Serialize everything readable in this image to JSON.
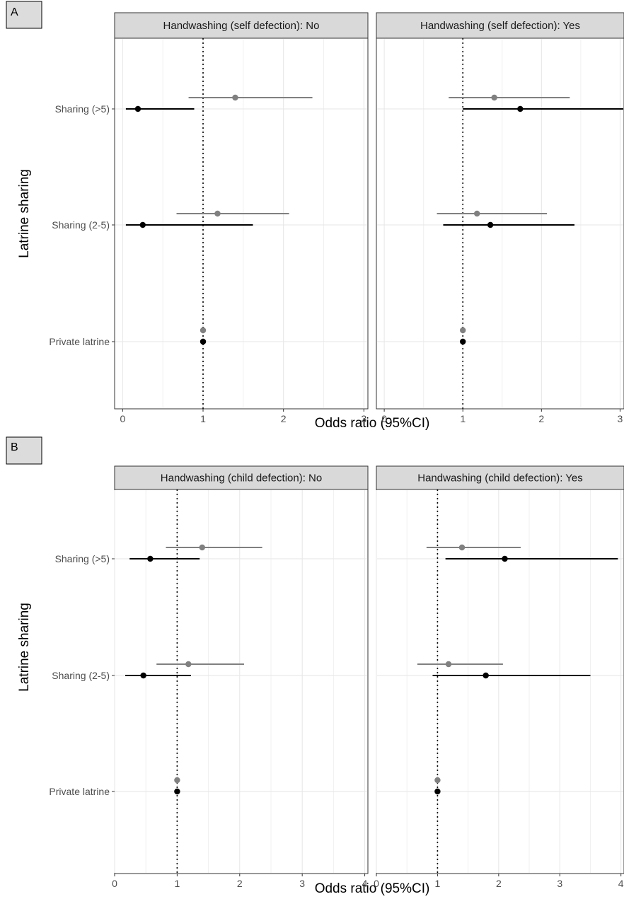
{
  "chart_data": [
    {
      "type": "scatter",
      "panel_tag": "A",
      "ylabel": "Latrine sharing",
      "xlabel": "Odds ratio (95%CI)",
      "categories": [
        "Sharing (>5)",
        "Sharing (2-5)",
        "Private latrine"
      ],
      "xlim": [
        -0.1,
        3.05
      ],
      "xticks": [
        0,
        1,
        2,
        3
      ],
      "reference_line": 1,
      "grid": true,
      "colors": {
        "grey_series": "#808080",
        "black_series": "#000000"
      },
      "facets": [
        {
          "strip": "Handwashing (self defection): No",
          "series": [
            {
              "color": "grey",
              "points": [
                {
                  "category": "Sharing (>5)",
                  "or": 1.4,
                  "lo": 0.82,
                  "hi": 2.36
                },
                {
                  "category": "Sharing (2-5)",
                  "or": 1.18,
                  "lo": 0.67,
                  "hi": 2.07
                },
                {
                  "category": "Private latrine",
                  "or": 1.0,
                  "lo": 1.0,
                  "hi": 1.0
                }
              ]
            },
            {
              "color": "black",
              "points": [
                {
                  "category": "Sharing (>5)",
                  "or": 0.19,
                  "lo": 0.04,
                  "hi": 0.89
                },
                {
                  "category": "Sharing (2-5)",
                  "or": 0.25,
                  "lo": 0.04,
                  "hi": 1.62
                },
                {
                  "category": "Private latrine",
                  "or": 1.0,
                  "lo": 1.0,
                  "hi": 1.0
                }
              ]
            }
          ]
        },
        {
          "strip": "Handwashing (self defection): Yes",
          "series": [
            {
              "color": "grey",
              "points": [
                {
                  "category": "Sharing (>5)",
                  "or": 1.4,
                  "lo": 0.82,
                  "hi": 2.36
                },
                {
                  "category": "Sharing (2-5)",
                  "or": 1.18,
                  "lo": 0.67,
                  "hi": 2.07
                },
                {
                  "category": "Private latrine",
                  "or": 1.0,
                  "lo": 1.0,
                  "hi": 1.0
                }
              ]
            },
            {
              "color": "black",
              "points": [
                {
                  "category": "Sharing (>5)",
                  "or": 1.73,
                  "lo": 1.0,
                  "hi": 3.05
                },
                {
                  "category": "Sharing (2-5)",
                  "or": 1.35,
                  "lo": 0.75,
                  "hi": 2.42
                },
                {
                  "category": "Private latrine",
                  "or": 1.0,
                  "lo": 1.0,
                  "hi": 1.0
                }
              ]
            }
          ]
        }
      ]
    },
    {
      "type": "scatter",
      "panel_tag": "B",
      "ylabel": "Latrine sharing",
      "xlabel": "Odds ratio (95%CI)",
      "categories": [
        "Sharing (>5)",
        "Sharing (2-5)",
        "Private latrine"
      ],
      "xlim": [
        0,
        4.05
      ],
      "xticks": [
        0,
        1,
        2,
        3,
        4
      ],
      "reference_line": 1,
      "grid": true,
      "colors": {
        "grey_series": "#808080",
        "black_series": "#000000"
      },
      "facets": [
        {
          "strip": "Handwashing (child defection): No",
          "series": [
            {
              "color": "grey",
              "points": [
                {
                  "category": "Sharing (>5)",
                  "or": 1.4,
                  "lo": 0.82,
                  "hi": 2.36
                },
                {
                  "category": "Sharing (2-5)",
                  "or": 1.18,
                  "lo": 0.67,
                  "hi": 2.07
                },
                {
                  "category": "Private latrine",
                  "or": 1.0,
                  "lo": 1.0,
                  "hi": 1.0
                }
              ]
            },
            {
              "color": "black",
              "points": [
                {
                  "category": "Sharing (>5)",
                  "or": 0.57,
                  "lo": 0.24,
                  "hi": 1.36
                },
                {
                  "category": "Sharing (2-5)",
                  "or": 0.46,
                  "lo": 0.17,
                  "hi": 1.22
                },
                {
                  "category": "Private latrine",
                  "or": 1.0,
                  "lo": 1.0,
                  "hi": 1.0
                }
              ]
            }
          ]
        },
        {
          "strip": "Handwashing (child defection): Yes",
          "series": [
            {
              "color": "grey",
              "points": [
                {
                  "category": "Sharing (>5)",
                  "or": 1.4,
                  "lo": 0.82,
                  "hi": 2.36
                },
                {
                  "category": "Sharing (2-5)",
                  "or": 1.18,
                  "lo": 0.67,
                  "hi": 2.07
                },
                {
                  "category": "Private latrine",
                  "or": 1.0,
                  "lo": 1.0,
                  "hi": 1.0
                }
              ]
            },
            {
              "color": "black",
              "points": [
                {
                  "category": "Sharing (>5)",
                  "or": 2.1,
                  "lo": 1.13,
                  "hi": 3.95
                },
                {
                  "category": "Sharing (2-5)",
                  "or": 1.79,
                  "lo": 0.92,
                  "hi": 3.5
                },
                {
                  "category": "Private latrine",
                  "or": 1.0,
                  "lo": 1.0,
                  "hi": 1.0
                }
              ]
            }
          ]
        }
      ]
    }
  ]
}
